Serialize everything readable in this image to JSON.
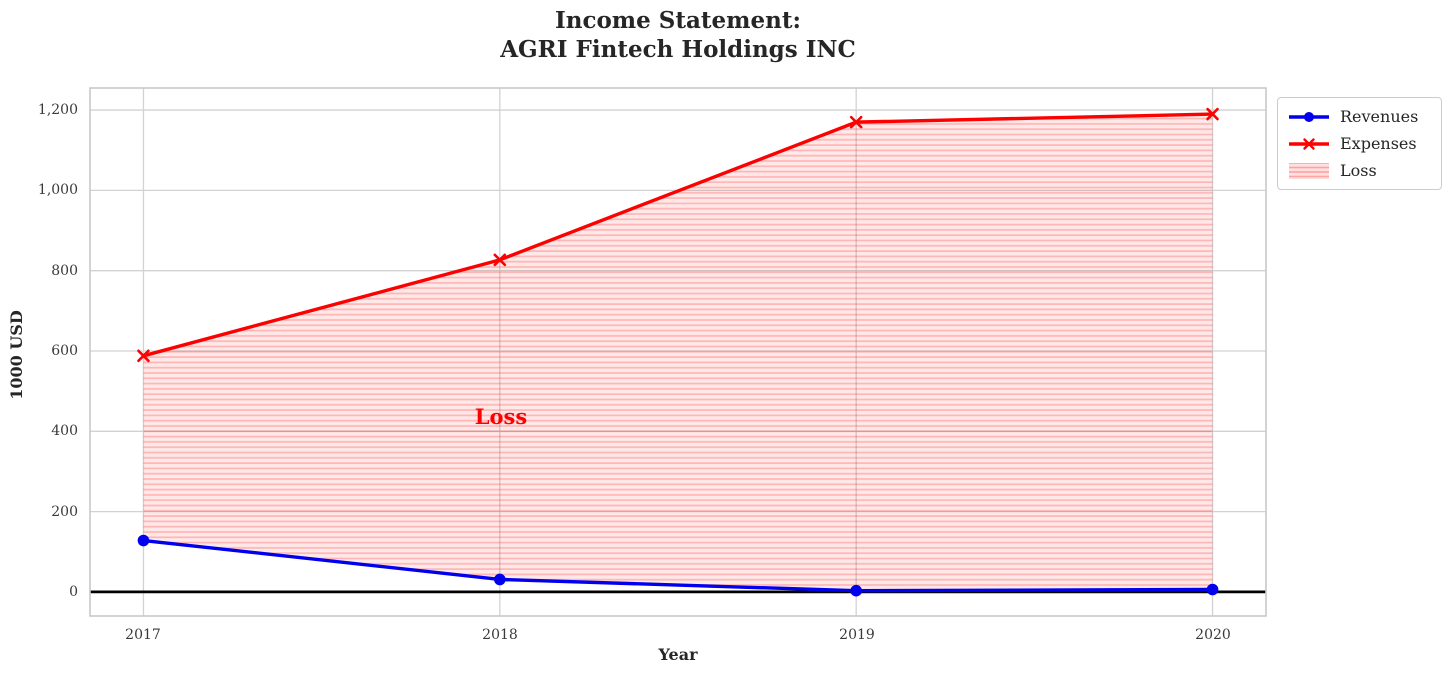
{
  "title": {
    "line1": "Income Statement:",
    "line2": "AGRI Fintech Holdings INC"
  },
  "x_axis": {
    "label": "Year",
    "tick_labels": [
      "2017",
      "2018",
      "2019",
      "2020"
    ]
  },
  "y_axis": {
    "label": "1000 USD",
    "tick_labels": [
      "0",
      "200",
      "400",
      "600",
      "800",
      "1,000",
      "1,200"
    ]
  },
  "annotation": {
    "text": "Loss"
  },
  "legend": {
    "items": [
      {
        "label": "Revenues"
      },
      {
        "label": "Expenses"
      },
      {
        "label": "Loss"
      }
    ]
  },
  "colors": {
    "revenues": "#0000ee",
    "expenses": "#ff0000",
    "loss_fill": "#ff0000",
    "grid": "#d2d2d2",
    "spine": "#c8c8c8",
    "zero_line": "#000000",
    "text": "#262626"
  },
  "chart_data": {
    "type": "line",
    "title": "Income Statement: AGRI Fintech Holdings INC",
    "xlabel": "Year",
    "ylabel": "1000 USD",
    "x": [
      2017,
      2018,
      2019,
      2020
    ],
    "x_tick_labels": [
      "2017",
      "2018",
      "2019",
      "2020"
    ],
    "y_ticks": [
      0,
      200,
      400,
      600,
      800,
      1000,
      1200
    ],
    "y_tick_labels": [
      "0",
      "200",
      "400",
      "600",
      "800",
      "1,000",
      "1,200"
    ],
    "series": [
      {
        "name": "Revenues",
        "values": [
          128,
          31,
          3,
          6
        ],
        "color": "#0000ee",
        "marker": "circle"
      },
      {
        "name": "Expenses",
        "values": [
          588,
          827,
          1170,
          1190
        ],
        "color": "#ff0000",
        "marker": "x"
      }
    ],
    "loss_area": {
      "name": "Loss",
      "between": [
        "Revenues",
        "Expenses"
      ],
      "hatch": "horizontal",
      "label_position": {
        "x": 2018,
        "y": 420
      }
    },
    "xlim": [
      2016.85,
      2020.15
    ],
    "ylim": [
      -60,
      1255
    ],
    "grid": true,
    "zero_line": true,
    "legend_position": "outside-upper-right"
  }
}
